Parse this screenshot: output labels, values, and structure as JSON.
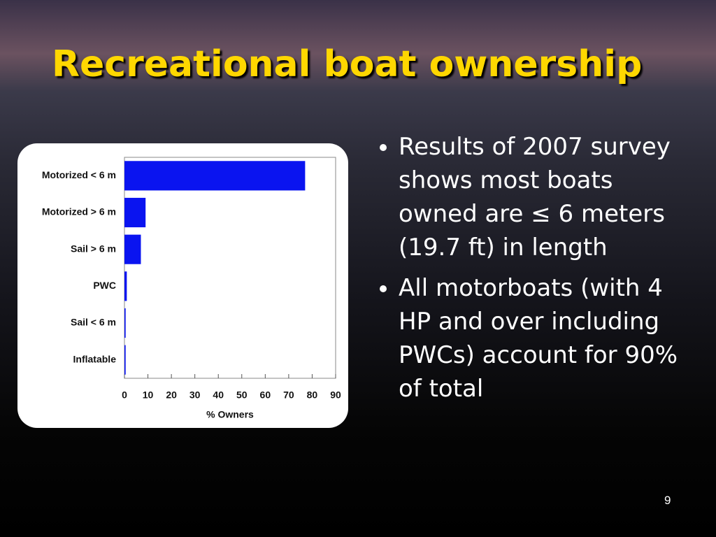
{
  "slide": {
    "title": "Recreational boat ownership",
    "bullets": [
      "Results of 2007 survey shows most boats owned are ≤ 6 meters (19.7 ft) in length",
      "All motorboats (with 4 HP and over including PWCs) account for 90% of total"
    ],
    "page_number": "9"
  },
  "chart_data": {
    "type": "hbar",
    "categories": [
      "Motorized < 6 m",
      "Motorized > 6 m",
      "Sail > 6 m",
      "PWC",
      "Sail < 6 m",
      "Inflatable"
    ],
    "values": [
      77,
      9,
      7,
      1,
      0.5,
      0.5
    ],
    "color": "#0a14f0",
    "xlabel": "% Owners",
    "xlim": [
      0,
      90
    ],
    "xticks": [
      0,
      10,
      20,
      30,
      40,
      50,
      60,
      70,
      80,
      90
    ]
  }
}
